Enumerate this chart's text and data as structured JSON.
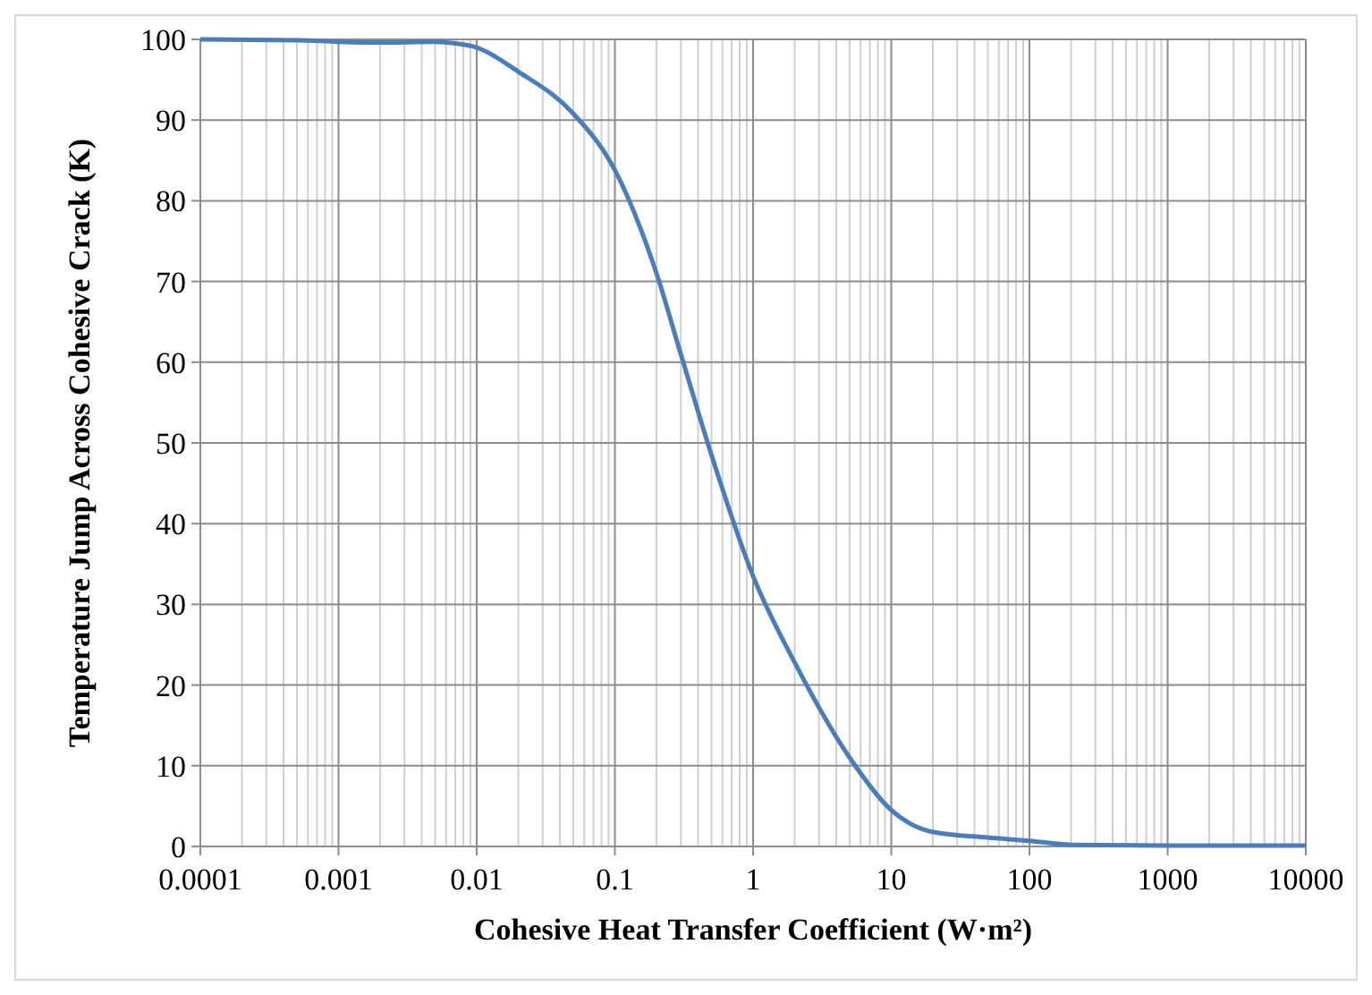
{
  "chart_data": {
    "type": "line",
    "xlabel": "Cohesive Heat Transfer Coefficient (W·m²)",
    "ylabel": "Temperature Jump Across Cohesive Crack (K)",
    "log": "x",
    "grid": true,
    "marker": "none",
    "line_style": "solid",
    "xlim": [
      0.0001,
      10000
    ],
    "xticks": [
      0.0001,
      0.001,
      0.01,
      0.1,
      1,
      10,
      100,
      1000,
      10000
    ],
    "ylim": [
      0,
      100
    ],
    "yticks": [
      0,
      10,
      20,
      30,
      40,
      50,
      60,
      70,
      80,
      90,
      100
    ],
    "series": [
      {
        "color": "#4a7ebb",
        "x": [
          0.0001,
          0.0005,
          0.001,
          0.002,
          0.005,
          0.007,
          0.01,
          0.02,
          0.05,
          0.1,
          0.2,
          0.3,
          0.5,
          1,
          2,
          5,
          10,
          20,
          50,
          100,
          200,
          1000,
          10000
        ],
        "values": [
          100,
          99.9,
          99.7,
          99.6,
          99.7,
          99.5,
          99,
          96,
          90.8,
          83.8,
          71,
          61,
          48.5,
          33.5,
          22.8,
          11,
          4.5,
          1.8,
          1.1,
          0.7,
          0.2,
          0.1,
          0.1
        ]
      }
    ]
  }
}
